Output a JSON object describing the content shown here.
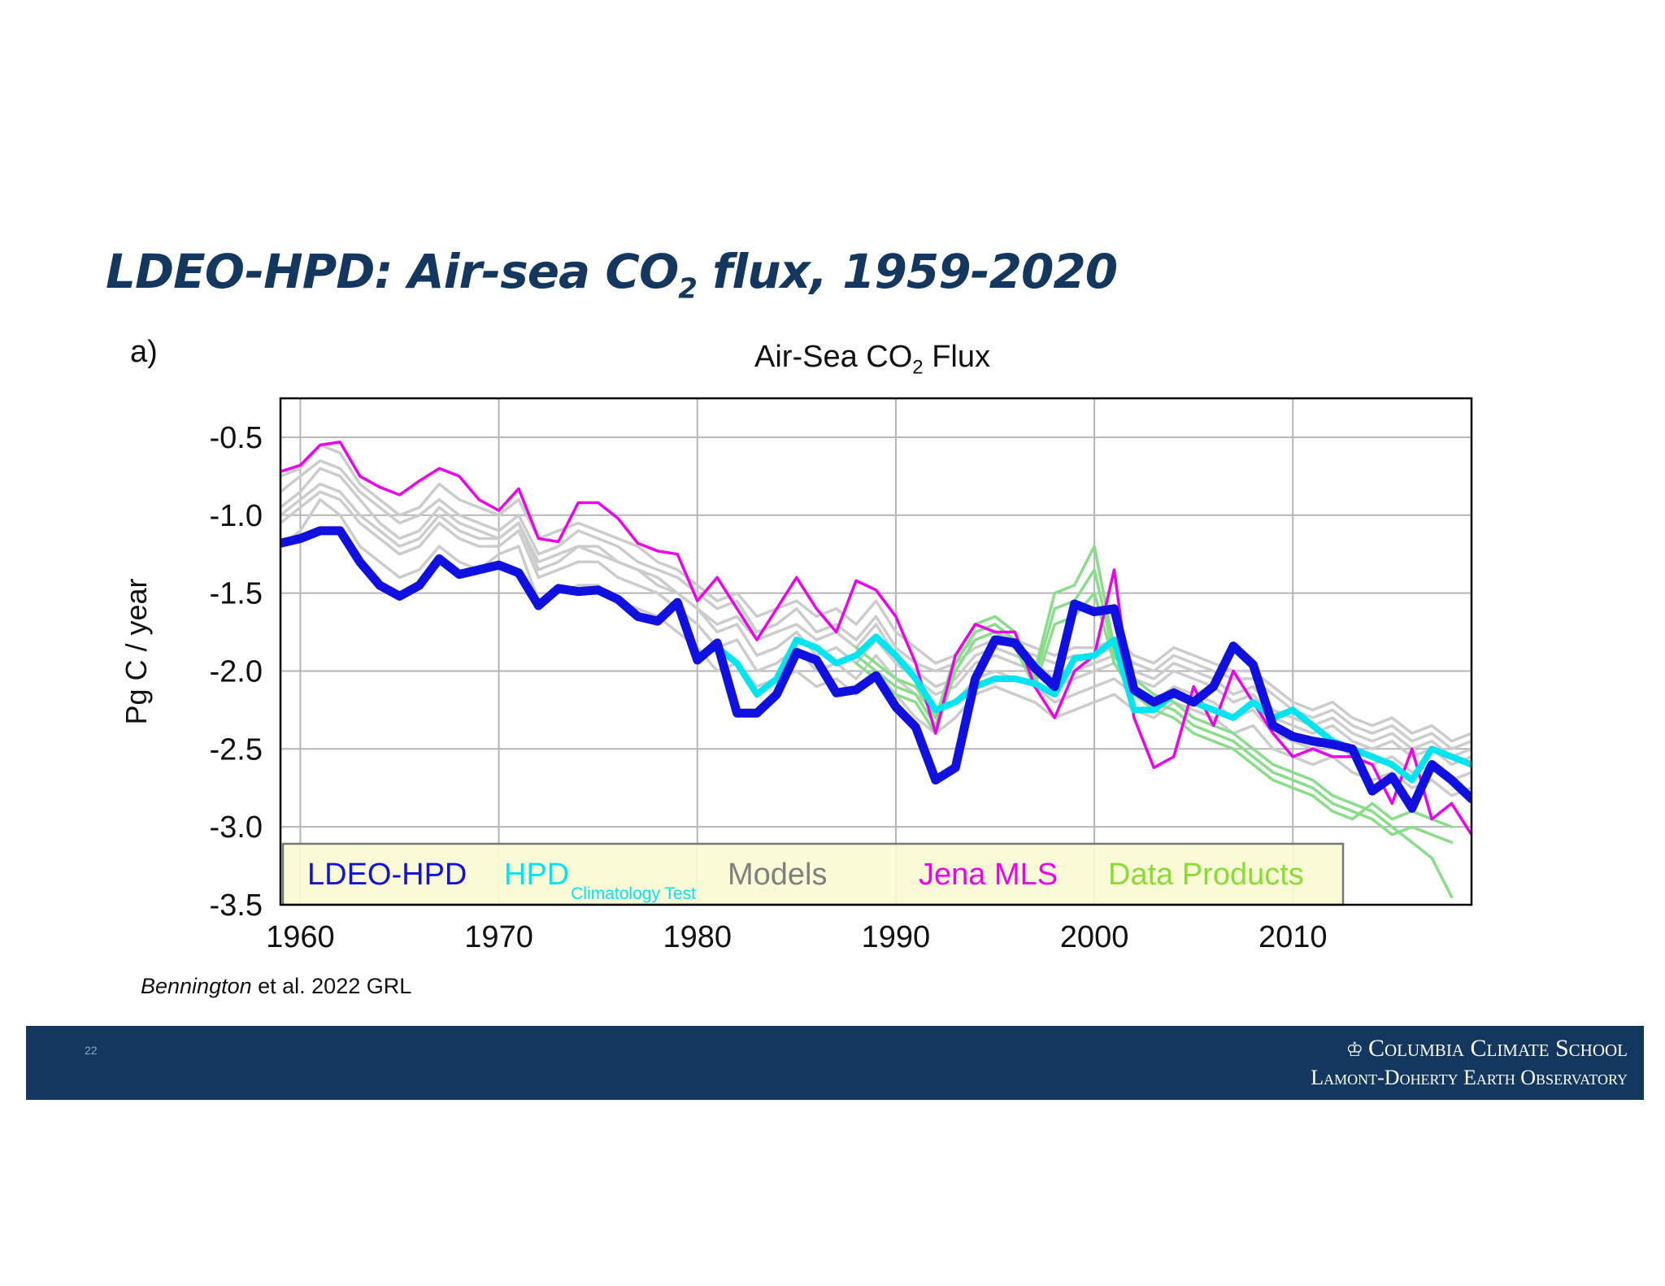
{
  "slide": {
    "title_main": "LDEO-HPD: Air-sea CO",
    "title_sub": "2",
    "title_rest": " flux, 1959-2020",
    "panel_label": "a)",
    "citation_italic": "Bennington",
    "citation_rest": " et al. 2022 GRL",
    "page_number": "22",
    "footer_line1": "Columbia Climate School",
    "footer_line2": "Lamont-Doherty Earth Observatory",
    "footer_icon": "crown-icon"
  },
  "chart_data": {
    "type": "line",
    "title_main": "Air-Sea CO",
    "title_sub": "2",
    "title_rest": " Flux",
    "xlabel": "",
    "ylabel": "Pg C / year",
    "xlim": [
      1959,
      2019
    ],
    "ylim": [
      -3.5,
      -0.25
    ],
    "xticks": [
      1960,
      1970,
      1980,
      1990,
      2000,
      2010
    ],
    "xtick_labels": [
      "1960",
      "1970",
      "1980",
      "1990",
      "2000",
      "2010"
    ],
    "yticks": [
      -0.5,
      -1.0,
      -1.5,
      -2.0,
      -2.5,
      -3.0,
      -3.5
    ],
    "ytick_labels": [
      "-0.5",
      "-1.0",
      "-1.5",
      "-2.0",
      "-2.5",
      "-3.0",
      "-3.5"
    ],
    "grid": true,
    "legend_position": "bottom",
    "legend": [
      {
        "label": "LDEO-HPD",
        "sub": "",
        "color": "#1010e0"
      },
      {
        "label": "HPD",
        "sub": "Climatology Test",
        "color": "#00e5f0"
      },
      {
        "label": "Models",
        "sub": "",
        "color": "#808080"
      },
      {
        "label": "Jena MLS",
        "sub": "",
        "color": "#ee00ee"
      },
      {
        "label": "Data Products",
        "sub": "",
        "color": "#88dd33"
      }
    ],
    "series": [
      {
        "group": "models",
        "color": "#cccccc",
        "x_start": 1959,
        "values": [
          -0.95,
          -0.85,
          -0.7,
          -0.75,
          -0.9,
          -1.05,
          -1.15,
          -1.1,
          -0.95,
          -1.05,
          -1.1,
          -1.15,
          -1.05,
          -1.35,
          -1.3,
          -1.2,
          -1.25,
          -1.3,
          -1.35,
          -1.45,
          -1.5,
          -1.6,
          -1.75,
          -1.7,
          -1.9,
          -1.85,
          -1.75,
          -1.9,
          -1.85,
          -1.95,
          -1.8,
          -1.95,
          -2.05,
          -2.15,
          -2.1,
          -1.95,
          -1.9,
          -1.95,
          -2.0,
          -2.1,
          -2.05,
          -2.0,
          -1.95,
          -2.05,
          -2.1,
          -2.0,
          -2.05,
          -2.1,
          -2.2,
          -2.15,
          -2.3,
          -2.35,
          -2.4,
          -2.35,
          -2.45,
          -2.5,
          -2.45,
          -2.55,
          -2.5,
          -2.6,
          -2.55,
          -2.65
        ]
      },
      {
        "group": "models",
        "color": "#cccccc",
        "x_start": 1959,
        "values": [
          -0.85,
          -0.75,
          -0.65,
          -0.7,
          -0.85,
          -0.95,
          -1.05,
          -1.0,
          -0.9,
          -1.0,
          -1.05,
          -1.1,
          -1.0,
          -1.25,
          -1.2,
          -1.1,
          -1.15,
          -1.2,
          -1.3,
          -1.35,
          -1.4,
          -1.5,
          -1.6,
          -1.55,
          -1.75,
          -1.7,
          -1.6,
          -1.75,
          -1.7,
          -1.8,
          -1.65,
          -1.85,
          -1.95,
          -2.0,
          -1.95,
          -1.85,
          -1.8,
          -1.85,
          -1.9,
          -1.95,
          -1.9,
          -1.9,
          -1.85,
          -1.95,
          -2.0,
          -1.9,
          -1.95,
          -2.0,
          -2.05,
          -2.05,
          -2.15,
          -2.25,
          -2.3,
          -2.25,
          -2.35,
          -2.4,
          -2.35,
          -2.45,
          -2.4,
          -2.5,
          -2.45,
          -2.55
        ]
      },
      {
        "group": "models",
        "color": "#cccccc",
        "x_start": 1959,
        "values": [
          -1.05,
          -0.95,
          -0.85,
          -0.9,
          -1.05,
          -1.15,
          -1.25,
          -1.2,
          -1.05,
          -1.15,
          -1.2,
          -1.2,
          -1.1,
          -1.4,
          -1.35,
          -1.3,
          -1.3,
          -1.4,
          -1.45,
          -1.5,
          -1.6,
          -1.7,
          -1.85,
          -1.8,
          -2.0,
          -1.95,
          -1.85,
          -2.0,
          -1.95,
          -2.05,
          -1.9,
          -2.05,
          -2.15,
          -2.25,
          -2.2,
          -2.05,
          -2.0,
          -2.05,
          -2.1,
          -2.2,
          -2.15,
          -2.1,
          -2.05,
          -2.15,
          -2.2,
          -2.1,
          -2.15,
          -2.2,
          -2.3,
          -2.25,
          -2.4,
          -2.45,
          -2.5,
          -2.45,
          -2.55,
          -2.6,
          -2.55,
          -2.65,
          -2.6,
          -2.7,
          -2.65,
          -2.75
        ]
      },
      {
        "group": "models",
        "color": "#cccccc",
        "x_start": 1959,
        "values": [
          -1.2,
          -1.1,
          -0.9,
          -1.0,
          -1.2,
          -1.3,
          -1.4,
          -1.35,
          -1.2,
          -1.3,
          -1.35,
          -1.25,
          -1.2,
          -1.55,
          -1.5,
          -1.45,
          -1.45,
          -1.55,
          -1.6,
          -1.65,
          -1.75,
          -1.85,
          -2.0,
          -1.95,
          -2.1,
          -2.05,
          -2.0,
          -2.1,
          -2.05,
          -2.15,
          -2.0,
          -2.15,
          -2.3,
          -2.4,
          -2.3,
          -2.15,
          -2.1,
          -2.15,
          -2.2,
          -2.3,
          -2.25,
          -2.2,
          -2.15,
          -2.25,
          -2.3,
          -2.2,
          -2.25,
          -2.3,
          -2.4,
          -2.35,
          -2.5,
          -2.55,
          -2.6,
          -2.55,
          -2.65,
          -2.7,
          -2.65,
          -2.75,
          -2.7,
          -2.8,
          -2.75,
          -2.85
        ]
      },
      {
        "group": "models",
        "color": "#cccccc",
        "x_start": 1959,
        "values": [
          -0.75,
          -0.7,
          -0.55,
          -0.6,
          -0.8,
          -0.9,
          -1.0,
          -0.95,
          -0.8,
          -0.9,
          -0.95,
          -1.0,
          -0.9,
          -1.15,
          -1.1,
          -1.05,
          -1.1,
          -1.15,
          -1.2,
          -1.3,
          -1.35,
          -1.45,
          -1.55,
          -1.5,
          -1.65,
          -1.6,
          -1.55,
          -1.65,
          -1.6,
          -1.7,
          -1.55,
          -1.75,
          -1.85,
          -1.95,
          -1.9,
          -1.8,
          -1.75,
          -1.8,
          -1.85,
          -1.9,
          -1.85,
          -1.85,
          -1.8,
          -1.9,
          -1.95,
          -1.85,
          -1.9,
          -1.95,
          -2.0,
          -2.0,
          -2.1,
          -2.2,
          -2.25,
          -2.2,
          -2.3,
          -2.35,
          -2.3,
          -2.4,
          -2.35,
          -2.45,
          -2.4,
          -2.5
        ]
      },
      {
        "group": "models",
        "color": "#cccccc",
        "x_start": 1959,
        "values": [
          -1.0,
          -0.9,
          -0.8,
          -0.85,
          -1.0,
          -1.1,
          -1.2,
          -1.15,
          -1.0,
          -1.1,
          -1.15,
          -1.15,
          -1.05,
          -1.3,
          -1.25,
          -1.2,
          -1.2,
          -1.3,
          -1.35,
          -1.4,
          -1.5,
          -1.6,
          -1.7,
          -1.65,
          -1.8,
          -1.75,
          -1.7,
          -1.8,
          -1.75,
          -1.85,
          -1.7,
          -1.9,
          -2.0,
          -2.1,
          -2.05,
          -1.9,
          -1.85,
          -1.9,
          -1.95,
          -2.05,
          -2.0,
          -1.95,
          -1.9,
          -2.0,
          -2.05,
          -1.95,
          -2.0,
          -2.05,
          -2.15,
          -2.1,
          -2.25,
          -2.3,
          -2.35,
          -2.3,
          -2.4,
          -2.45,
          -2.4,
          -2.5,
          -2.45,
          -2.55,
          -2.5,
          -2.6
        ]
      },
      {
        "group": "data_products",
        "color": "#88dd88",
        "x_start": 1988,
        "values": [
          -1.85,
          -1.95,
          -2.05,
          -2.1,
          -2.3,
          -1.9,
          -1.7,
          -1.65,
          -1.75,
          -2.0,
          -1.5,
          -1.45,
          -1.2,
          -1.85,
          -2.05,
          -2.15,
          -2.2,
          -2.3,
          -2.35,
          -2.4,
          -2.5,
          -2.6,
          -2.65,
          -2.7,
          -2.8,
          -2.85,
          -2.9,
          -3.0,
          -3.1,
          -3.2,
          -3.45
        ]
      },
      {
        "group": "data_products",
        "color": "#88dd88",
        "x_start": 1988,
        "values": [
          -1.9,
          -2.0,
          -2.1,
          -2.15,
          -2.35,
          -1.95,
          -1.75,
          -1.7,
          -1.8,
          -2.05,
          -1.6,
          -1.55,
          -1.35,
          -1.9,
          -2.1,
          -2.2,
          -2.25,
          -2.35,
          -2.4,
          -2.45,
          -2.55,
          -2.65,
          -2.7,
          -2.75,
          -2.85,
          -2.9,
          -2.95,
          -3.05,
          -3.0,
          -3.05,
          -3.1
        ]
      },
      {
        "group": "data_products",
        "color": "#88dd88",
        "x_start": 1988,
        "values": [
          -1.95,
          -2.05,
          -2.15,
          -2.2,
          -2.4,
          -2.0,
          -1.8,
          -1.75,
          -1.85,
          -2.1,
          -1.7,
          -1.65,
          -1.5,
          -1.95,
          -2.15,
          -2.25,
          -2.3,
          -2.4,
          -2.45,
          -2.5,
          -2.6,
          -2.7,
          -2.75,
          -2.8,
          -2.9,
          -2.95,
          -2.85,
          -2.95,
          -2.9,
          -2.95,
          -3.0
        ]
      },
      {
        "group": "jena_mls",
        "color": "#ee00ee",
        "x_start": 1959,
        "values": [
          -0.72,
          -0.68,
          -0.55,
          -0.53,
          -0.75,
          -0.82,
          -0.87,
          -0.78,
          -0.7,
          -0.75,
          -0.9,
          -0.97,
          -0.83,
          -1.15,
          -1.17,
          -0.92,
          -0.92,
          -1.02,
          -1.18,
          -1.23,
          -1.25,
          -1.55,
          -1.4,
          -1.6,
          -1.8,
          -1.6,
          -1.4,
          -1.6,
          -1.75,
          -1.42,
          -1.48,
          -1.65,
          -1.95,
          -2.4,
          -1.9,
          -1.7,
          -1.75,
          -1.75,
          -2.1,
          -2.3,
          -2.0,
          -1.9,
          -1.35,
          -2.3,
          -2.62,
          -2.55,
          -2.1,
          -2.35,
          -2.0,
          -2.2,
          -2.4,
          -2.55,
          -2.5,
          -2.55,
          -2.55,
          -2.6,
          -2.85,
          -2.5,
          -2.95,
          -2.85,
          -3.05,
          -3.0
        ]
      },
      {
        "group": "hpd_climatology",
        "color": "#00e5f0",
        "x_start": 1980,
        "values": [
          -1.9,
          -1.85,
          -1.95,
          -2.15,
          -2.05,
          -1.8,
          -1.85,
          -1.95,
          -1.9,
          -1.78,
          -1.9,
          -2.05,
          -2.25,
          -2.2,
          -2.1,
          -2.05,
          -2.05,
          -2.08,
          -2.15,
          -1.92,
          -1.9,
          -1.8,
          -2.25,
          -2.25,
          -2.15,
          -2.2,
          -2.25,
          -2.3,
          -2.2,
          -2.3,
          -2.25,
          -2.35,
          -2.45,
          -2.5,
          -2.55,
          -2.6,
          -2.7,
          -2.5,
          -2.55,
          -2.6
        ]
      },
      {
        "group": "ldeo_hpd",
        "color": "#1010e0",
        "x_start": 1959,
        "values": [
          -1.18,
          -1.15,
          -1.1,
          -1.1,
          -1.3,
          -1.45,
          -1.52,
          -1.45,
          -1.28,
          -1.38,
          -1.35,
          -1.32,
          -1.37,
          -1.58,
          -1.47,
          -1.49,
          -1.48,
          -1.54,
          -1.65,
          -1.68,
          -1.56,
          -1.93,
          -1.82,
          -2.27,
          -2.27,
          -2.15,
          -1.88,
          -1.93,
          -2.14,
          -2.12,
          -2.03,
          -2.23,
          -2.36,
          -2.7,
          -2.62,
          -2.05,
          -1.8,
          -1.82,
          -1.98,
          -2.1,
          -1.57,
          -1.62,
          -1.6,
          -2.12,
          -2.2,
          -2.14,
          -2.2,
          -2.1,
          -1.84,
          -1.96,
          -2.35,
          -2.42,
          -2.45,
          -2.47,
          -2.5,
          -2.77,
          -2.68,
          -2.88,
          -2.6,
          -2.7,
          -2.82
        ]
      }
    ]
  }
}
